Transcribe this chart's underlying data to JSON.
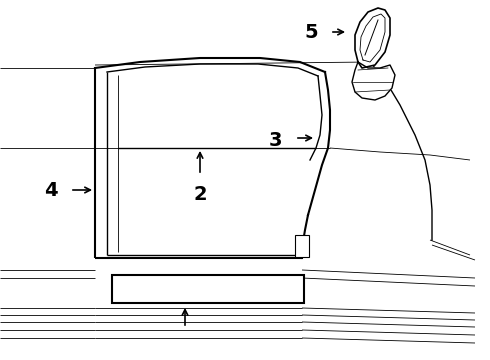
{
  "bg_color": "#ffffff",
  "line_color": "#000000",
  "label_fontsize": 14,
  "figsize": [
    4.9,
    3.6
  ],
  "dpi": 100
}
